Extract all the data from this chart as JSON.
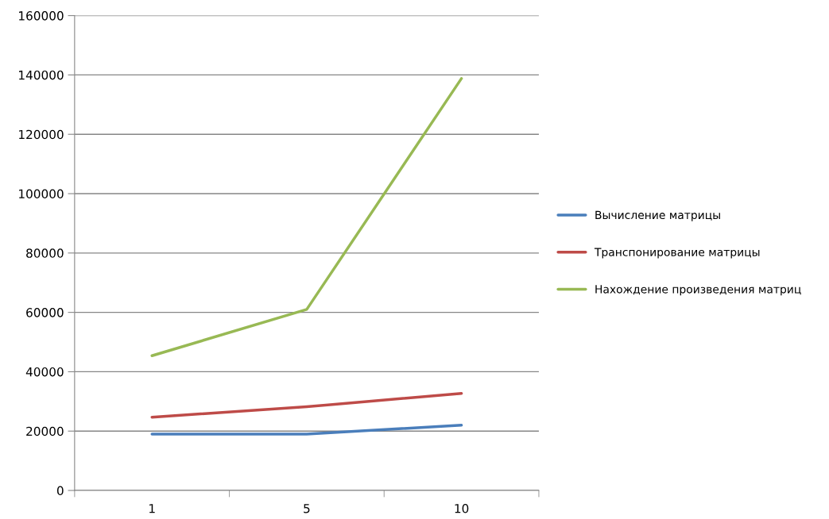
{
  "chart_data": {
    "type": "line",
    "categories": [
      "1",
      "5",
      "10"
    ],
    "series": [
      {
        "name": "Вычисление матрицы",
        "color": "#4a7ebb",
        "values": [
          19000,
          19000,
          22000
        ]
      },
      {
        "name": "Транспонирование матрицы",
        "color": "#be4b48",
        "values": [
          24700,
          28200,
          32700
        ]
      },
      {
        "name": "Нахождение произведения матриц",
        "color": "#98b954",
        "values": [
          45400,
          61000,
          138800
        ]
      }
    ],
    "ylim": [
      0,
      160000
    ],
    "yticks": [
      0,
      20000,
      40000,
      60000,
      80000,
      100000,
      120000,
      140000,
      160000
    ],
    "grid": "y",
    "legend": "right",
    "marker": "none",
    "line_style": "solid"
  }
}
